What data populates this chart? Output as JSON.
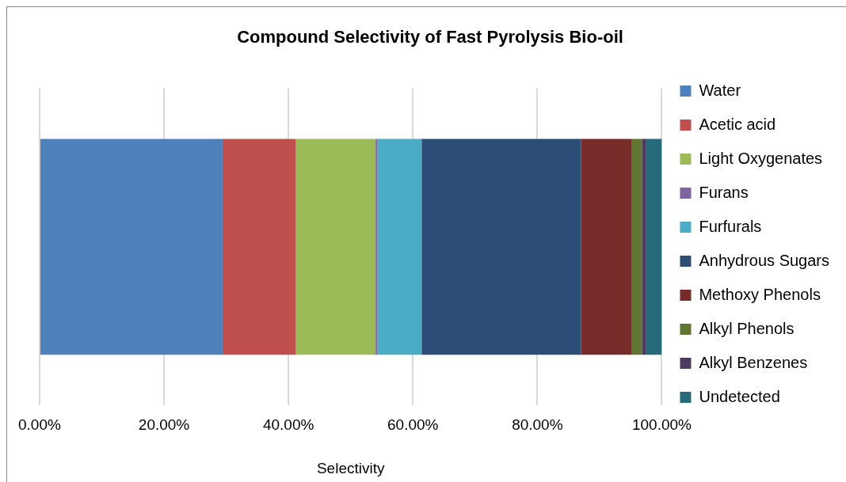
{
  "chart_data": {
    "type": "bar",
    "title": "Compound Selectivity of Fast Pyrolysis Bio-oil",
    "xlabel": "Selectivity",
    "orientation": "horizontal",
    "stacked": true,
    "categories": [
      null
    ],
    "series": [
      {
        "name": "Water",
        "color": "#4f81bd",
        "values": [
          29.4
        ]
      },
      {
        "name": "Acetic acid",
        "color": "#c0504d",
        "values": [
          11.8
        ]
      },
      {
        "name": "Light Oxygenates",
        "color": "#9bbb59",
        "values": [
          12.8
        ]
      },
      {
        "name": "Furans",
        "color": "#8064a2",
        "values": [
          0.3
        ]
      },
      {
        "name": "Furfurals",
        "color": "#4bacc6",
        "values": [
          7.1
        ]
      },
      {
        "name": "Anhydrous Sugars",
        "color": "#2c4d75",
        "values": [
          25.6
        ]
      },
      {
        "name": "Methoxy Phenols",
        "color": "#772c2a",
        "values": [
          8.2
        ]
      },
      {
        "name": "Alkyl Phenols",
        "color": "#5f7530",
        "values": [
          1.6
        ]
      },
      {
        "name": "Alkyl Benzenes",
        "color": "#4d3b62",
        "values": [
          0.6
        ]
      },
      {
        "name": "Undetected",
        "color": "#276a7c",
        "values": [
          2.6
        ]
      }
    ],
    "xlim": [
      0,
      100
    ],
    "xticks": [
      {
        "value": 0,
        "label": "0.00%"
      },
      {
        "value": 20,
        "label": "20.00%"
      },
      {
        "value": 40,
        "label": "40.00%"
      },
      {
        "value": 60,
        "label": "60.00%"
      },
      {
        "value": 80,
        "label": "80.00%"
      },
      {
        "value": 100,
        "label": "100.00%"
      }
    ],
    "grid": "x",
    "legend": "right"
  }
}
